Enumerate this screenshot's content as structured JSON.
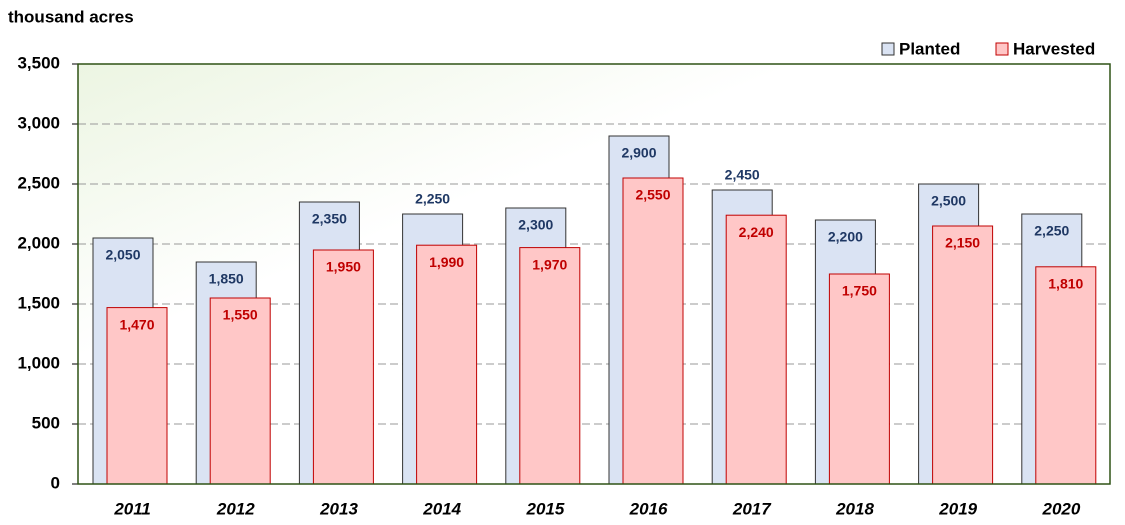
{
  "chart_data": {
    "type": "bar",
    "y_axis_label": "thousand acres",
    "categories": [
      "2011",
      "2012",
      "2013",
      "2014",
      "2015",
      "2016",
      "2017",
      "2018",
      "2019",
      "2020"
    ],
    "series": [
      {
        "name": "Planted",
        "color": "#dae3f3",
        "label_color": "#1f3864",
        "values": [
          2050,
          1850,
          2350,
          2250,
          2300,
          2900,
          2450,
          2200,
          2500,
          2250
        ],
        "value_labels": [
          "2,050",
          "1,850",
          "2,350",
          "2,250",
          "2,300",
          "2,900",
          "2,450",
          "2,200",
          "2,500",
          "2,250"
        ]
      },
      {
        "name": "Harvested",
        "color": "#ffc7c7",
        "label_color": "#c00000",
        "values": [
          1470,
          1550,
          1950,
          1990,
          1970,
          2550,
          2240,
          1750,
          2150,
          1810
        ],
        "value_labels": [
          "1,470",
          "1,550",
          "1,950",
          "1,990",
          "1,970",
          "2,550",
          "2,240",
          "1,750",
          "2,150",
          "1,810"
        ]
      }
    ],
    "ylim": [
      0,
      3500
    ],
    "yticks": [
      0,
      500,
      {
        "value": 1000,
        "label": "1,000"
      },
      {
        "value": 1500,
        "label": "1,500"
      },
      {
        "value": 2000,
        "label": "2,000"
      },
      {
        "value": 2500,
        "label": "2,500"
      },
      {
        "value": 3000,
        "label": "3,000"
      },
      {
        "value": 3500,
        "label": "3,500"
      }
    ],
    "grid": true,
    "legend": "top-right"
  }
}
